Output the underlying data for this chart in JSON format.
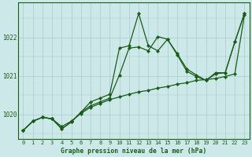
{
  "title": "Graphe pression niveau de la mer (hPa)",
  "background_color": "#cce8e8",
  "plot_bg_color": "#cce8e8",
  "line_color": "#1a5c1a",
  "grid_color": "#aacccc",
  "xlim": [
    -0.5,
    23.5
  ],
  "ylim": [
    1019.35,
    1022.9
  ],
  "yticks": [
    1020,
    1021,
    1022
  ],
  "xticks": [
    0,
    1,
    2,
    3,
    4,
    5,
    6,
    7,
    8,
    9,
    10,
    11,
    12,
    13,
    14,
    15,
    16,
    17,
    18,
    19,
    20,
    21,
    22,
    23
  ],
  "series1": [
    1019.58,
    1019.82,
    1019.92,
    1019.88,
    1019.68,
    1019.82,
    1020.02,
    1020.18,
    1020.28,
    1020.38,
    1020.45,
    1020.52,
    1020.58,
    1020.62,
    1020.68,
    1020.72,
    1020.78,
    1020.82,
    1020.88,
    1020.9,
    1020.93,
    1020.98,
    1021.05,
    1022.58
  ],
  "series2": [
    1019.58,
    1019.82,
    1019.92,
    1019.88,
    1019.62,
    1019.8,
    1020.05,
    1020.22,
    1020.32,
    1020.42,
    1021.02,
    1021.72,
    1021.75,
    1021.65,
    1022.02,
    1021.95,
    1021.58,
    1021.18,
    1021.02,
    1020.88,
    1021.08,
    1021.08,
    1021.88,
    1022.62
  ],
  "series3": [
    1019.58,
    1019.82,
    1019.92,
    1019.88,
    1019.62,
    1019.8,
    1020.05,
    1020.32,
    1020.42,
    1020.52,
    1021.72,
    1021.78,
    1022.62,
    1021.78,
    1021.65,
    1021.95,
    1021.55,
    1021.12,
    1020.98,
    1020.88,
    1021.05,
    1021.08,
    1021.88,
    1022.62
  ]
}
